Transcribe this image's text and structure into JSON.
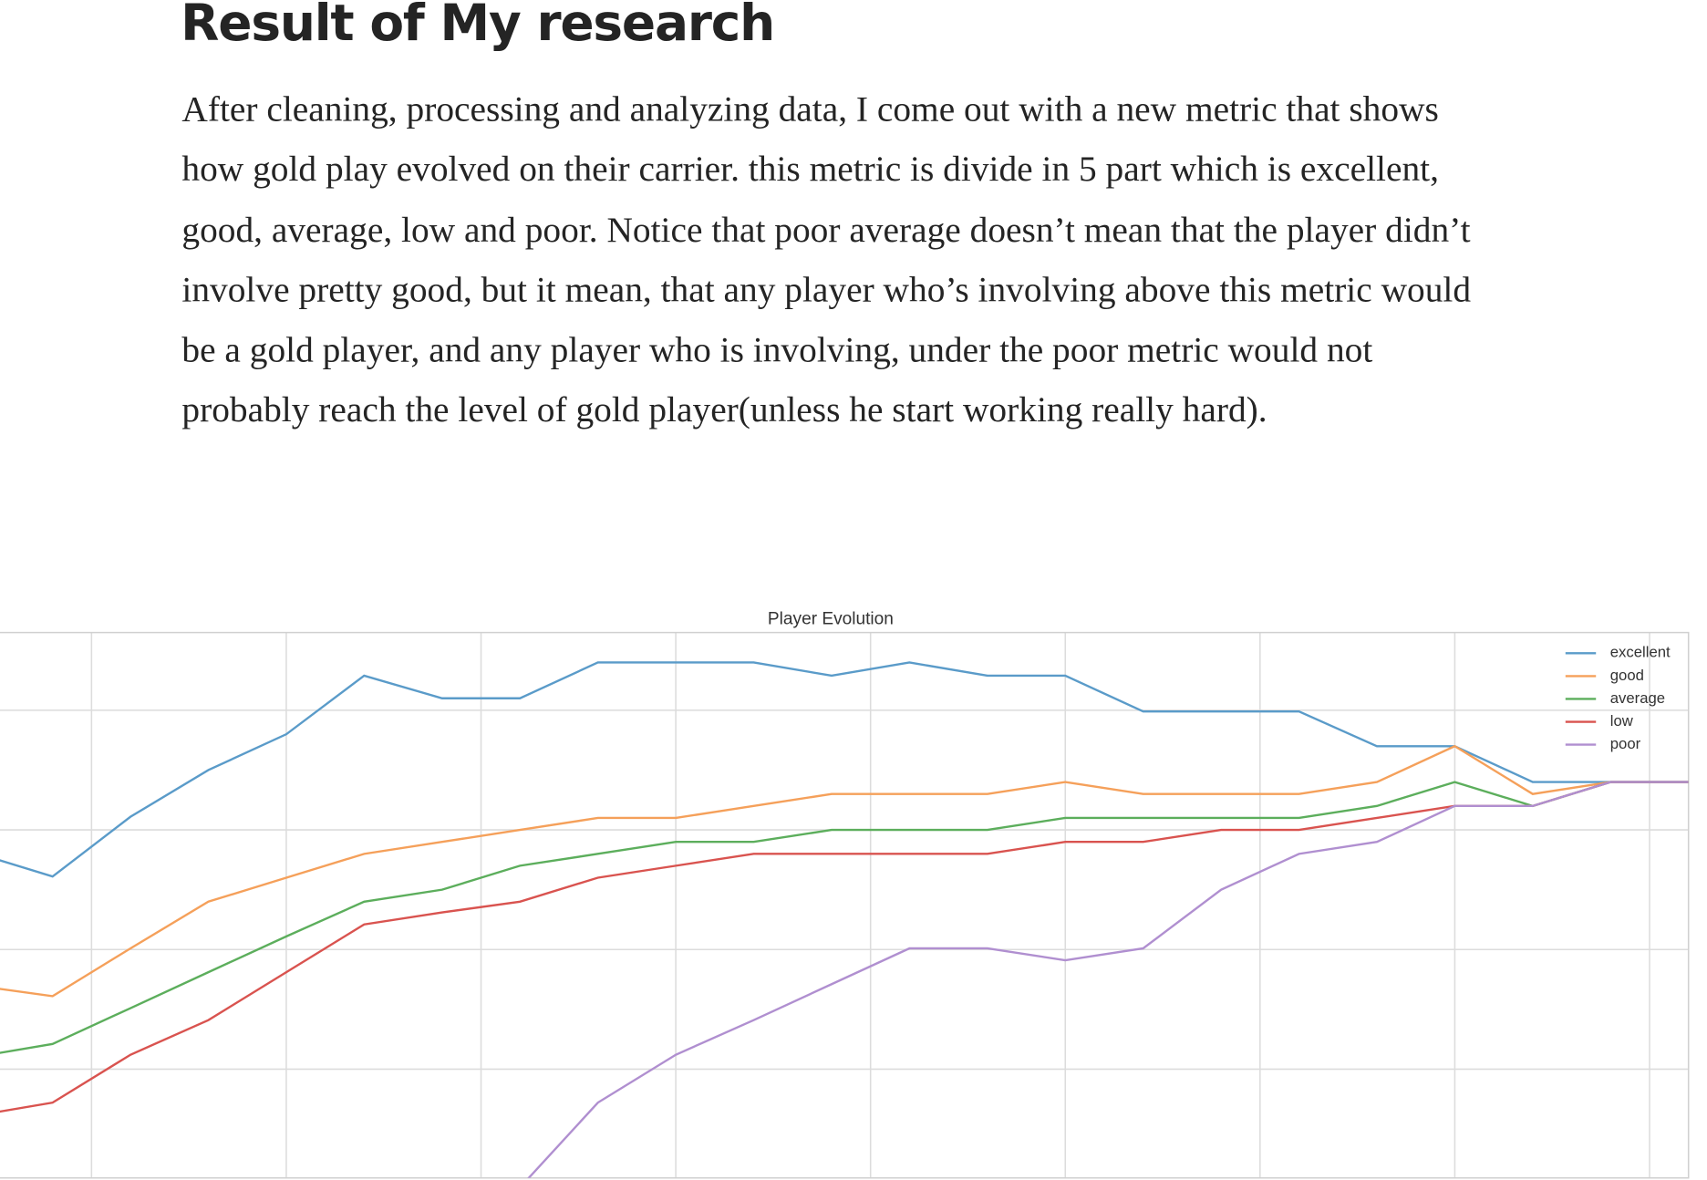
{
  "article": {
    "heading": "Result of My research",
    "paragraph": "After cleaning, processing and analyzing data, I come out with a new metric that shows how gold play evolved on their carrier. this metric is divide in 5 part which is excellent, good, average, low and poor. Notice that poor average doesn’t mean that the player didn’t involve pretty good, but it mean, that any player who’s involving above this metric would be a gold player, and any player who is involving, under the poor metric would not probably reach the level of gold player(unless he start working really hard)."
  },
  "chart_data": {
    "type": "line",
    "title": "Player Evolution",
    "x": [
      2,
      4,
      6,
      8,
      10,
      12,
      14,
      16,
      18,
      20,
      22,
      24,
      26,
      28,
      30,
      32,
      34,
      36,
      38,
      40,
      42,
      44,
      46
    ],
    "series": [
      {
        "name": "excellent",
        "color": "#5a9bc9",
        "values": [
          2.81,
          2.61,
          3.11,
          3.5,
          3.8,
          4.29,
          4.1,
          4.1,
          4.4,
          4.4,
          4.4,
          4.29,
          4.4,
          4.29,
          4.29,
          3.99,
          3.99,
          3.99,
          3.7,
          3.7,
          3.4,
          3.4,
          3.4
        ]
      },
      {
        "name": "good",
        "color": "#f5a05a",
        "values": [
          1.7,
          1.61,
          2.01,
          2.4,
          2.6,
          2.8,
          2.9,
          3.0,
          3.1,
          3.1,
          3.2,
          3.3,
          3.3,
          3.3,
          3.4,
          3.3,
          3.3,
          3.3,
          3.4,
          3.7,
          3.3,
          3.4,
          3.4
        ]
      },
      {
        "name": "average",
        "color": "#5cae5c",
        "values": [
          1.1,
          1.21,
          1.51,
          1.81,
          2.11,
          2.4,
          2.5,
          2.7,
          2.8,
          2.9,
          2.9,
          3.0,
          3.0,
          3.0,
          3.1,
          3.1,
          3.1,
          3.1,
          3.2,
          3.4,
          3.2,
          3.4,
          3.4
        ]
      },
      {
        "name": "low",
        "color": "#d9534f",
        "values": [
          0.61,
          0.72,
          1.12,
          1.41,
          1.81,
          2.21,
          2.31,
          2.4,
          2.6,
          2.7,
          2.8,
          2.8,
          2.8,
          2.8,
          2.9,
          2.9,
          3.0,
          3.0,
          3.1,
          3.2,
          3.2,
          3.4,
          3.4
        ]
      },
      {
        "name": "poor",
        "color": "#b08fd0",
        "values": [
          null,
          null,
          null,
          null,
          null,
          null,
          null,
          0.01,
          0.72,
          1.12,
          1.41,
          1.71,
          2.01,
          2.01,
          1.91,
          2.01,
          2.5,
          2.8,
          2.9,
          3.2,
          3.2,
          3.4,
          3.4
        ]
      }
    ],
    "xlim": [
      2.65,
      46
    ],
    "xticks": [
      5,
      10,
      15,
      20,
      25,
      30,
      35,
      40,
      45
    ],
    "ylim": [
      0.09,
      4.65
    ],
    "yticks": [
      1,
      2,
      3,
      4
    ],
    "grid": true,
    "legend": "upper right"
  }
}
